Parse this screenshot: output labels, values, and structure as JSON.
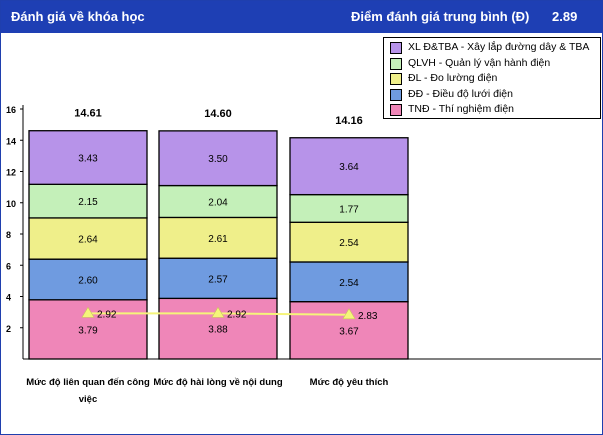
{
  "header": {
    "title": "Đánh giá về khóa học",
    "score_label": "Điểm đánh giá trung bình (Đ)",
    "score_value": "2.89"
  },
  "chart_data": {
    "type": "bar",
    "stacked": true,
    "categories": [
      "Mức độ liên quan đến công việc",
      "Mức độ hài lòng về nội dung",
      "Mức độ yêu thích"
    ],
    "series": [
      {
        "name": "TNĐ - Thí nghiệm điện",
        "values": [
          3.79,
          3.88,
          3.67
        ],
        "color": "#ef86b8"
      },
      {
        "name": "ĐĐ - Điều độ lưới điện",
        "values": [
          2.6,
          2.57,
          2.54
        ],
        "color": "#6f9be0"
      },
      {
        "name": "ĐL - Đo lường điện",
        "values": [
          2.64,
          2.61,
          2.54
        ],
        "color": "#efef8a"
      },
      {
        "name": "QLVH - Quản lý vận hành điện",
        "values": [
          2.15,
          2.04,
          1.77
        ],
        "color": "#c4f0b9"
      },
      {
        "name": "XL Đ&TBA - Xây lắp đường dây & TBA",
        "values": [
          3.43,
          3.5,
          3.64
        ],
        "color": "#b793e9"
      }
    ],
    "totals": [
      "14.61",
      "14.60",
      "14.16"
    ],
    "line": {
      "values": [
        2.92,
        2.92,
        2.83
      ],
      "color": "#f5f57a"
    },
    "yticks": [
      2,
      4,
      6,
      8,
      10,
      12,
      14,
      16
    ],
    "ylim": [
      0,
      16
    ],
    "grid": false,
    "legend_position": "top-right"
  }
}
